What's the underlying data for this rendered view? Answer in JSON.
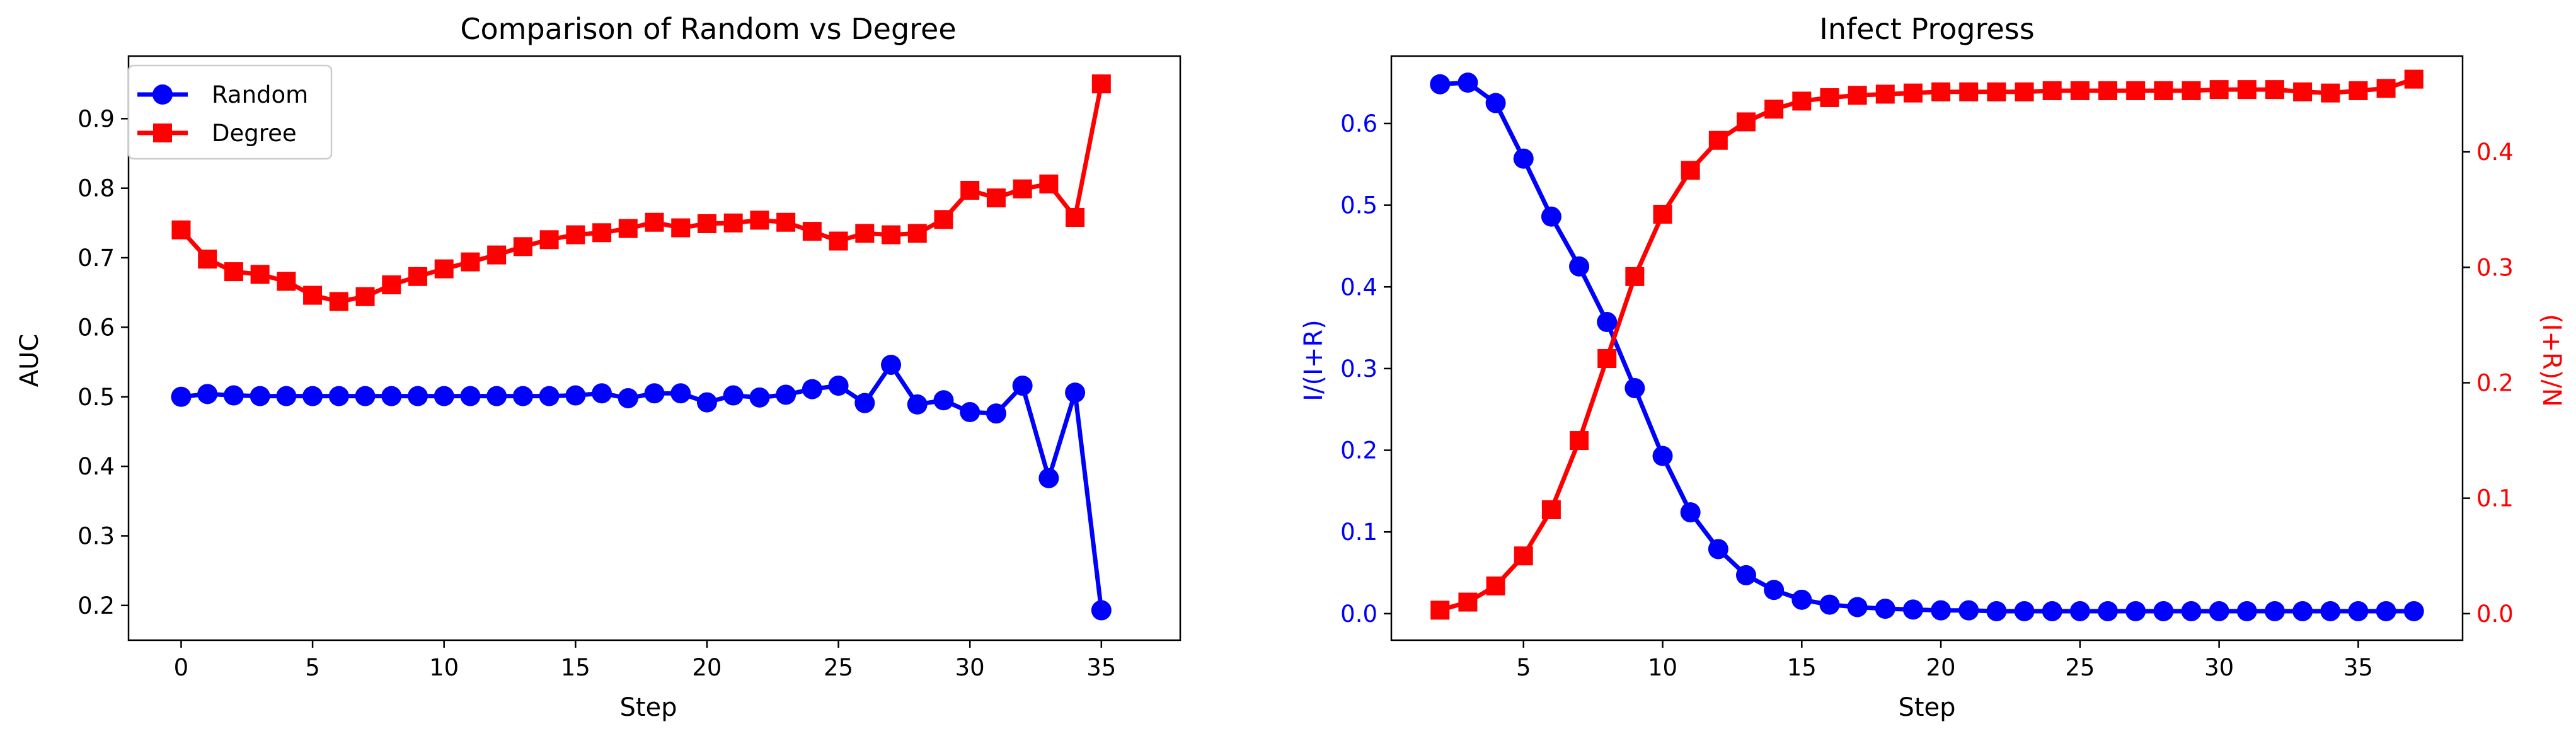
{
  "chart_data": [
    {
      "type": "line",
      "title": "Comparison of Random vs Degree",
      "xlabel": "Step",
      "ylabel": "AUC",
      "xlim": [
        -2,
        38
      ],
      "ylim": [
        0.15,
        0.99
      ],
      "xticks": [
        0,
        5,
        10,
        15,
        20,
        25,
        30,
        35
      ],
      "yticks": [
        0.2,
        0.3,
        0.4,
        0.5,
        0.6,
        0.7,
        0.8,
        0.9
      ],
      "legend": "top-left",
      "x": [
        0,
        1,
        2,
        3,
        4,
        5,
        6,
        7,
        8,
        9,
        10,
        11,
        12,
        13,
        14,
        15,
        16,
        17,
        18,
        19,
        20,
        21,
        22,
        23,
        24,
        25,
        26,
        27,
        28,
        29,
        30,
        31,
        32,
        33,
        34,
        35
      ],
      "series": [
        {
          "name": "Random",
          "color": "#0000ff",
          "marker": "circle",
          "values": [
            0.5,
            0.504,
            0.502,
            0.501,
            0.501,
            0.501,
            0.501,
            0.501,
            0.501,
            0.501,
            0.501,
            0.501,
            0.501,
            0.501,
            0.501,
            0.502,
            0.505,
            0.498,
            0.505,
            0.505,
            0.492,
            0.502,
            0.499,
            0.503,
            0.511,
            0.516,
            0.491,
            0.546,
            0.489,
            0.495,
            0.478,
            0.476,
            0.516,
            0.383,
            0.506,
            0.193
          ]
        },
        {
          "name": "Degree",
          "color": "#ff0000",
          "marker": "square",
          "values": [
            0.74,
            0.698,
            0.68,
            0.676,
            0.666,
            0.646,
            0.637,
            0.644,
            0.661,
            0.673,
            0.684,
            0.694,
            0.704,
            0.716,
            0.726,
            0.733,
            0.736,
            0.742,
            0.751,
            0.743,
            0.749,
            0.75,
            0.754,
            0.751,
            0.738,
            0.724,
            0.735,
            0.733,
            0.735,
            0.755,
            0.797,
            0.786,
            0.799,
            0.806,
            0.758,
            0.95
          ]
        }
      ]
    },
    {
      "type": "line",
      "title": "Infect Progress",
      "xlabel": "Step",
      "ylabel": "I/(I+R)",
      "ylabel_right": "(I+R)/N",
      "xlim": [
        0.25,
        38.75
      ],
      "ylim": [
        -0.0325,
        0.6825
      ],
      "ylim_right": [
        -0.023,
        0.483
      ],
      "xticks": [
        5,
        10,
        15,
        20,
        25,
        30,
        35
      ],
      "yticks": [
        0.0,
        0.1,
        0.2,
        0.3,
        0.4,
        0.5,
        0.6
      ],
      "yticks_right": [
        0.0,
        0.1,
        0.2,
        0.3,
        0.4
      ],
      "x": [
        2,
        3,
        4,
        5,
        6,
        7,
        8,
        9,
        10,
        11,
        12,
        13,
        14,
        15,
        16,
        17,
        18,
        19,
        20,
        21,
        22,
        23,
        24,
        25,
        26,
        27,
        28,
        29,
        30,
        31,
        32,
        33,
        34,
        35,
        36,
        37
      ],
      "series": [
        {
          "name": "I/(I+R)",
          "axis": "left",
          "color": "#0000ff",
          "marker": "circle",
          "values": [
            0.648,
            0.65,
            0.625,
            0.557,
            0.486,
            0.425,
            0.357,
            0.276,
            0.193,
            0.124,
            0.079,
            0.047,
            0.029,
            0.017,
            0.011,
            0.008,
            0.006,
            0.005,
            0.004,
            0.004,
            0.003,
            0.003,
            0.003,
            0.003,
            0.003,
            0.003,
            0.003,
            0.003,
            0.003,
            0.003,
            0.003,
            0.003,
            0.003,
            0.003,
            0.003,
            0.003
          ]
        },
        {
          "name": "(I+R)/N",
          "axis": "right",
          "color": "#ff0000",
          "marker": "square",
          "values": [
            0.003,
            0.01,
            0.024,
            0.05,
            0.09,
            0.15,
            0.221,
            0.292,
            0.346,
            0.384,
            0.41,
            0.426,
            0.437,
            0.444,
            0.447,
            0.449,
            0.45,
            0.451,
            0.452,
            0.452,
            0.452,
            0.452,
            0.453,
            0.453,
            0.453,
            0.453,
            0.453,
            0.453,
            0.454,
            0.454,
            0.454,
            0.452,
            0.451,
            0.453,
            0.455,
            0.463
          ]
        }
      ]
    }
  ]
}
